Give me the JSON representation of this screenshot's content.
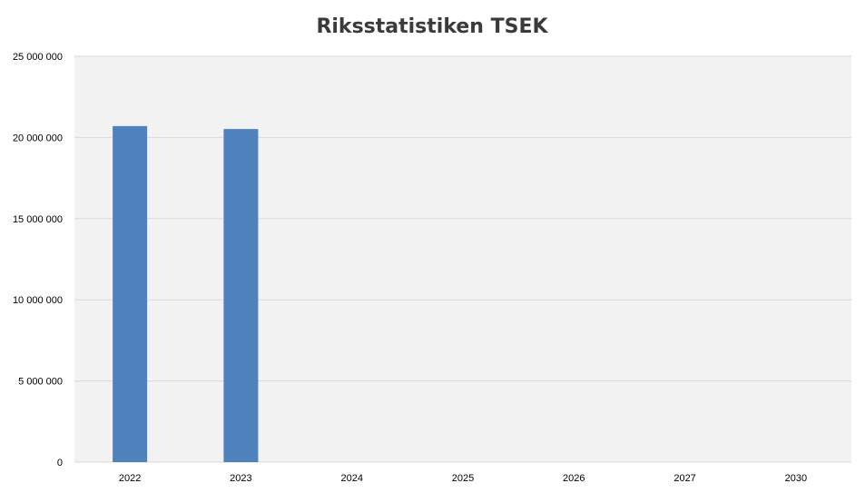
{
  "chart_data": {
    "type": "bar",
    "title": "Riksstatistiken TSEK",
    "xlabel": "",
    "ylabel": "",
    "categories": [
      "2022",
      "2023",
      "2024",
      "2025",
      "2026",
      "2027",
      "2030"
    ],
    "series": [
      {
        "values": [
          20700000,
          20520000,
          null,
          null,
          null,
          null,
          null
        ]
      }
    ],
    "ylim": [
      0,
      25000000
    ],
    "yticks": [
      0,
      5000000,
      10000000,
      15000000,
      20000000,
      25000000
    ],
    "ytick_labels": [
      "0",
      "5 000 000",
      "10 000 000",
      "15 000 000",
      "20 000 000",
      "25 000 000"
    ],
    "grid": true,
    "legend": "none",
    "colors": {
      "bar": "#4f81bd",
      "plot_background": "#f2f2f2",
      "gridline": "#d9d9d9",
      "title": "#3a3a3a"
    }
  }
}
